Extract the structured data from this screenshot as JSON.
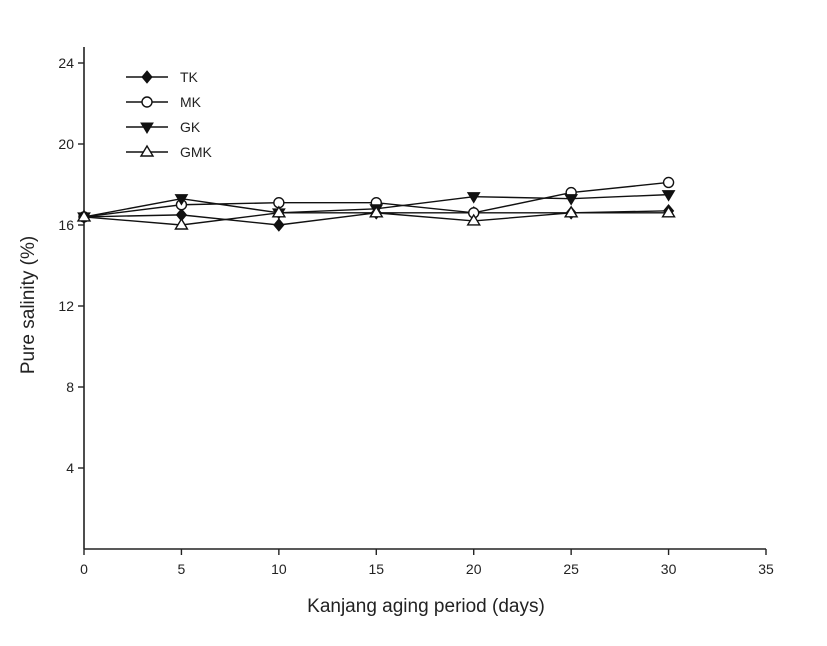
{
  "chart_data": {
    "type": "line",
    "xlabel": "Kanjang aging period (days)",
    "ylabel": "Pure salinity (%)",
    "xlim": [
      0,
      35
    ],
    "ylim": [
      0,
      24
    ],
    "x_ticks": [
      "0",
      "5",
      "10",
      "15",
      "20",
      "25",
      "30",
      "35"
    ],
    "y_ticks": [
      "4",
      "8",
      "12",
      "16",
      "20",
      "24"
    ],
    "grid": false,
    "legend_position": "top-left",
    "x": [
      0,
      5,
      10,
      15,
      20,
      25,
      30
    ],
    "series": [
      {
        "name": "TK",
        "marker": "filled-diamond",
        "values": [
          16.4,
          16.5,
          16.0,
          16.6,
          16.6,
          16.6,
          16.7
        ]
      },
      {
        "name": "MK",
        "marker": "open-circle",
        "values": [
          16.4,
          17.0,
          17.1,
          17.1,
          16.6,
          17.6,
          18.1
        ]
      },
      {
        "name": "GK",
        "marker": "filled-triangle-down",
        "values": [
          16.4,
          17.3,
          16.6,
          16.8,
          17.4,
          17.3,
          17.5
        ]
      },
      {
        "name": "GMK",
        "marker": "open-triangle-up",
        "values": [
          16.4,
          16.0,
          16.6,
          16.6,
          16.2,
          16.6,
          16.6
        ]
      }
    ]
  }
}
